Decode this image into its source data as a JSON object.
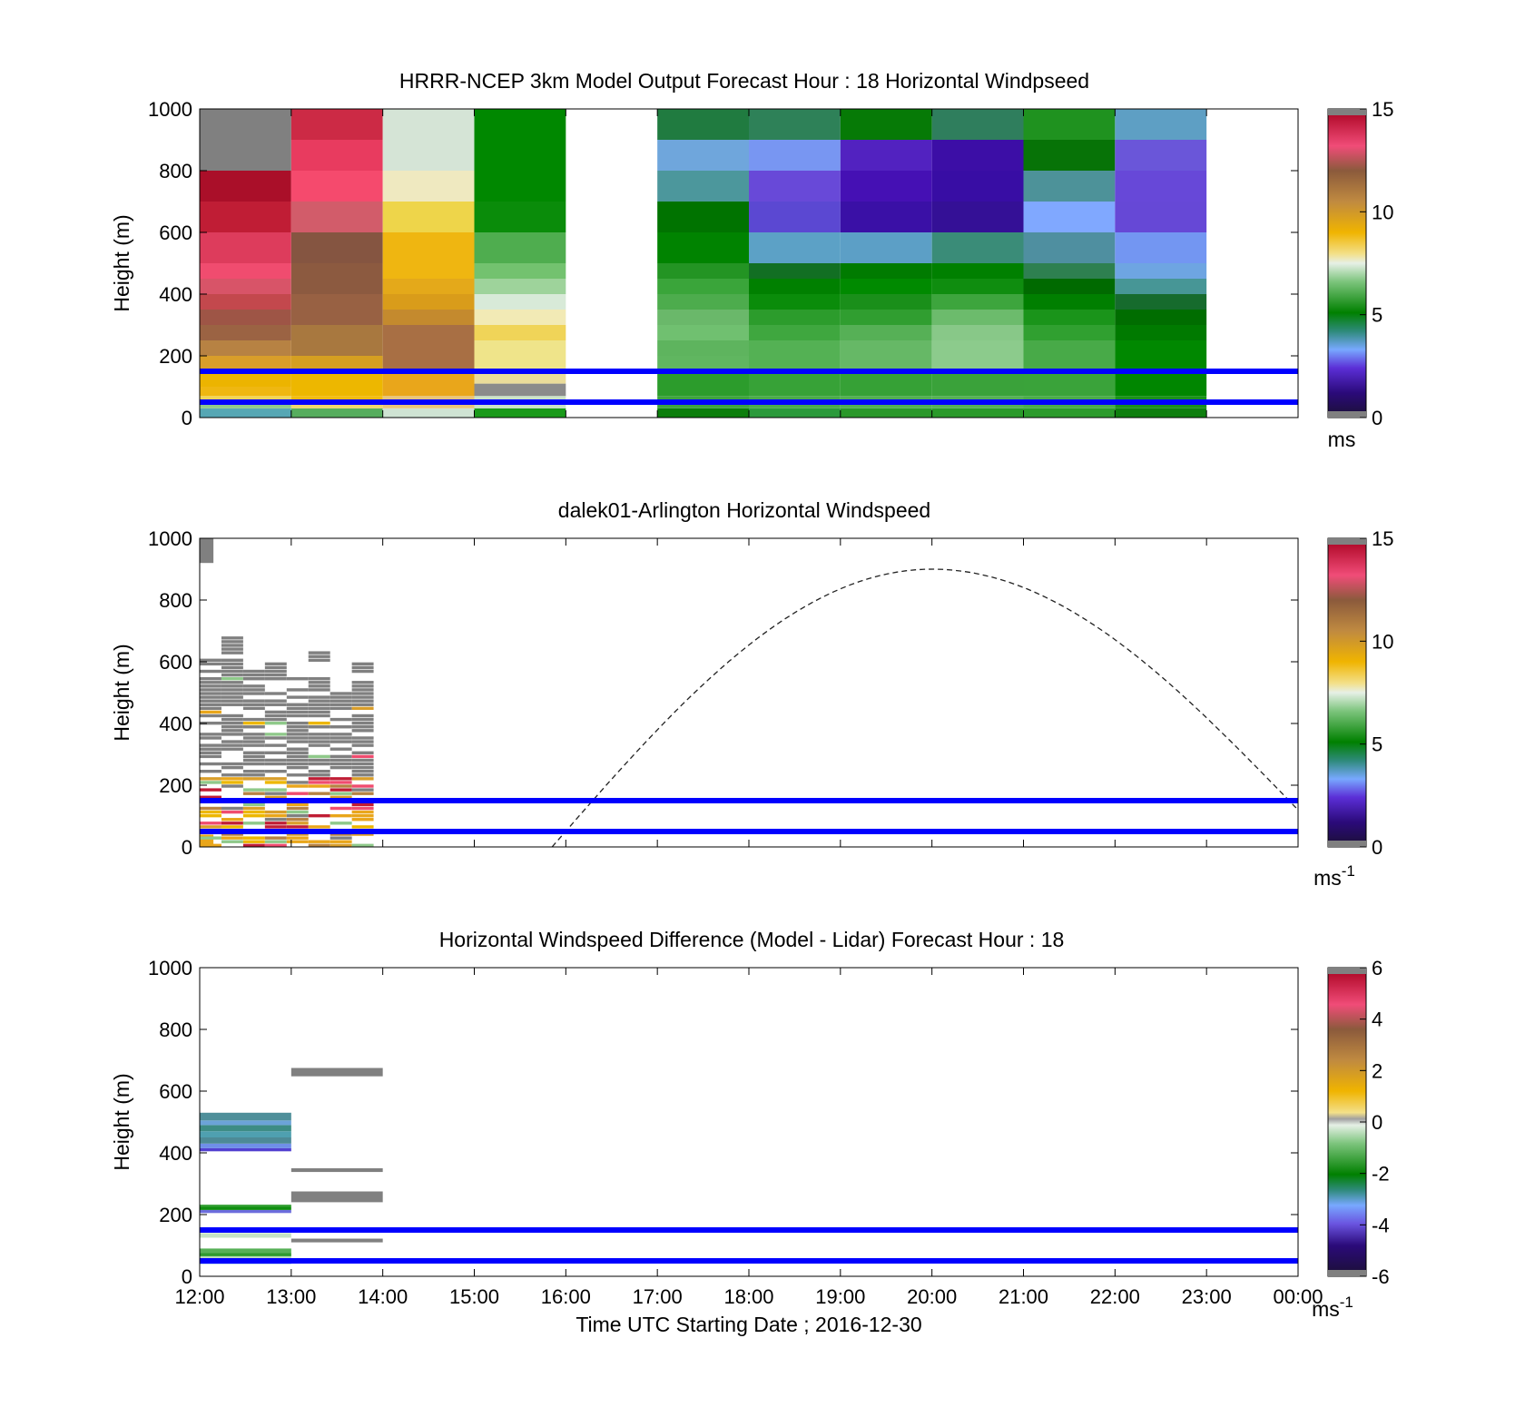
{
  "figure": {
    "xlabel": "Time UTC  Starting Date ; 2016-12-30",
    "x_ticks": [
      "12:00",
      "13:00",
      "14:00",
      "15:00",
      "16:00",
      "17:00",
      "18:00",
      "19:00",
      "20:00",
      "21:00",
      "22:00",
      "23:00",
      "00:00"
    ]
  },
  "chart_data": [
    {
      "type": "heatmap",
      "title": "HRRR-NCEP 3km Model Output   Forecast Hour : 18 Horizontal Windpseed",
      "ylabel": "Height (m)",
      "ylim": [
        0,
        1000
      ],
      "y_ticks": [
        "0",
        "200",
        "400",
        "600",
        "800",
        "1000"
      ],
      "colorbar": {
        "min": 0,
        "max": 15,
        "ticks": [
          "0",
          "5",
          "10",
          "15"
        ],
        "unit": "ms",
        "unit_sup": ""
      },
      "reference_lines_m": [
        50,
        150
      ],
      "reference_line_color": "#0000ff",
      "cells": [
        {
          "t0": 0,
          "t1": 1,
          "col": [
            [
              0,
              30,
              "#56a7b4"
            ],
            [
              30,
              50,
              "#8fc98a"
            ],
            [
              50,
              70,
              "#f0d455"
            ],
            [
              70,
              100,
              "#efb711"
            ],
            [
              100,
              150,
              "#ecb400"
            ],
            [
              150,
              200,
              "#d99e2a"
            ],
            [
              200,
              250,
              "#b78243"
            ],
            [
              250,
              300,
              "#9b6343"
            ],
            [
              300,
              350,
              "#9e5546"
            ],
            [
              350,
              400,
              "#c3484d"
            ],
            [
              400,
              450,
              "#d85468"
            ],
            [
              450,
              500,
              "#f04c6f"
            ],
            [
              500,
              600,
              "#dd3c5c"
            ],
            [
              600,
              700,
              "#c01d35"
            ],
            [
              700,
              800,
              "#aa0f29"
            ],
            [
              800,
              1000,
              "#808080"
            ]
          ]
        },
        {
          "t0": 1,
          "t1": 2,
          "col": [
            [
              0,
              30,
              "#56ad5e"
            ],
            [
              30,
              50,
              "#eed76e"
            ],
            [
              50,
              70,
              "#f1bb12"
            ],
            [
              70,
              150,
              "#edb700"
            ],
            [
              150,
              200,
              "#d59f21"
            ],
            [
              200,
              300,
              "#a8783f"
            ],
            [
              300,
              400,
              "#986143"
            ],
            [
              400,
              500,
              "#8c5a40"
            ],
            [
              500,
              600,
              "#855541"
            ],
            [
              600,
              700,
              "#d25c6a"
            ],
            [
              700,
              800,
              "#f54a6d"
            ],
            [
              800,
              900,
              "#e83b5f"
            ],
            [
              900,
              1000,
              "#cc2a45"
            ]
          ]
        },
        {
          "t0": 2,
          "t1": 3,
          "col": [
            [
              0,
              30,
              "#cfe3d3"
            ],
            [
              30,
              70,
              "#e8c47a"
            ],
            [
              70,
              150,
              "#e9a61b"
            ],
            [
              150,
              300,
              "#a86f44"
            ],
            [
              300,
              350,
              "#c48a2e"
            ],
            [
              350,
              400,
              "#d99c1a"
            ],
            [
              400,
              450,
              "#e4a91a"
            ],
            [
              450,
              600,
              "#efb611"
            ],
            [
              600,
              700,
              "#eed54a"
            ],
            [
              700,
              800,
              "#efe9c0"
            ],
            [
              800,
              1000,
              "#d5e4d6"
            ]
          ]
        },
        {
          "t0": 3,
          "t1": 4,
          "col": [
            [
              0,
              30,
              "#1a9a1a"
            ],
            [
              30,
              70,
              "#cbe2c8"
            ],
            [
              70,
              110,
              "#8b8b8b"
            ],
            [
              110,
              150,
              "#eadc9a"
            ],
            [
              150,
              250,
              "#efe48a"
            ],
            [
              250,
              300,
              "#f0d458"
            ],
            [
              300,
              350,
              "#f2eab5"
            ],
            [
              350,
              400,
              "#d8ead8"
            ],
            [
              400,
              450,
              "#9ed39b"
            ],
            [
              450,
              500,
              "#73c26f"
            ],
            [
              500,
              600,
              "#4fad4f"
            ],
            [
              600,
              700,
              "#0a8c0a"
            ],
            [
              700,
              1000,
              "#008800"
            ]
          ]
        },
        {
          "t0": 5,
          "t1": 6,
          "col": [
            [
              0,
              30,
              "#0c7e0c"
            ],
            [
              30,
              70,
              "#3ea33e"
            ],
            [
              70,
              150,
              "#2c9c2c"
            ],
            [
              150,
              200,
              "#60b660"
            ],
            [
              200,
              250,
              "#5eb45e"
            ],
            [
              250,
              300,
              "#70c070"
            ],
            [
              300,
              350,
              "#6ab86a"
            ],
            [
              350,
              400,
              "#4dac4d"
            ],
            [
              400,
              450,
              "#3aa53a"
            ],
            [
              450,
              500,
              "#239423"
            ],
            [
              500,
              600,
              "#008300"
            ],
            [
              600,
              700,
              "#007300"
            ],
            [
              700,
              800,
              "#4c979c"
            ],
            [
              800,
              900,
              "#6fa6dc"
            ],
            [
              900,
              1000,
              "#207b40"
            ]
          ]
        },
        {
          "t0": 6,
          "t1": 7,
          "col": [
            [
              0,
              30,
              "#2b9a3b"
            ],
            [
              30,
              70,
              "#4aaa4a"
            ],
            [
              70,
              150,
              "#37a237"
            ],
            [
              150,
              250,
              "#54b154"
            ],
            [
              250,
              300,
              "#3fa73f"
            ],
            [
              300,
              350,
              "#2c9c2c"
            ],
            [
              350,
              400,
              "#0a8c0a"
            ],
            [
              400,
              450,
              "#008000"
            ],
            [
              450,
              500,
              "#126f23"
            ],
            [
              500,
              600,
              "#5ca1c6"
            ],
            [
              600,
              700,
              "#5b48d2"
            ],
            [
              700,
              800,
              "#6849d8"
            ],
            [
              800,
              900,
              "#7896f2"
            ],
            [
              900,
              1000,
              "#2e8158"
            ]
          ]
        },
        {
          "t0": 7,
          "t1": 8,
          "col": [
            [
              0,
              30,
              "#2a982a"
            ],
            [
              30,
              70,
              "#52ae52"
            ],
            [
              70,
              150,
              "#36a136"
            ],
            [
              150,
              250,
              "#66b866"
            ],
            [
              250,
              300,
              "#56b056"
            ],
            [
              300,
              350,
              "#309e30"
            ],
            [
              350,
              400,
              "#1a8f1a"
            ],
            [
              400,
              450,
              "#008a00"
            ],
            [
              450,
              500,
              "#007b00"
            ],
            [
              500,
              600,
              "#5c9fc6"
            ],
            [
              600,
              700,
              "#3a10a6"
            ],
            [
              700,
              800,
              "#4510b4"
            ],
            [
              800,
              900,
              "#5222c0"
            ],
            [
              900,
              1000,
              "#067a06"
            ]
          ]
        },
        {
          "t0": 8,
          "t1": 9,
          "col": [
            [
              0,
              30,
              "#2a9a2a"
            ],
            [
              30,
              70,
              "#55af55"
            ],
            [
              70,
              150,
              "#3aa23a"
            ],
            [
              150,
              250,
              "#8ccb8c"
            ],
            [
              250,
              300,
              "#88c888"
            ],
            [
              300,
              350,
              "#6cbb6c"
            ],
            [
              350,
              400,
              "#3da53d"
            ],
            [
              400,
              450,
              "#0f8d0f"
            ],
            [
              450,
              500,
              "#008000"
            ],
            [
              500,
              600,
              "#3a8c78"
            ],
            [
              600,
              700,
              "#341096"
            ],
            [
              700,
              800,
              "#380da4"
            ],
            [
              800,
              900,
              "#3c0ea6"
            ],
            [
              900,
              1000,
              "#2f7e5d"
            ]
          ]
        },
        {
          "t0": 9,
          "t1": 10,
          "col": [
            [
              0,
              30,
              "#2c9b2c"
            ],
            [
              30,
              70,
              "#4aab4a"
            ],
            [
              70,
              150,
              "#3aa33a"
            ],
            [
              150,
              250,
              "#48aa48"
            ],
            [
              250,
              300,
              "#30a030"
            ],
            [
              300,
              350,
              "#1a941a"
            ],
            [
              350,
              400,
              "#007f00"
            ],
            [
              400,
              450,
              "#006a00"
            ],
            [
              450,
              500,
              "#2e8050"
            ],
            [
              500,
              600,
              "#4f8fa0"
            ],
            [
              600,
              700,
              "#80a8ff"
            ],
            [
              700,
              800,
              "#4d9299"
            ],
            [
              800,
              900,
              "#077307"
            ],
            [
              900,
              1000,
              "#1f921f"
            ]
          ]
        },
        {
          "t0": 10,
          "t1": 11,
          "col": [
            [
              0,
              30,
              "#0f7f0f"
            ],
            [
              30,
              70,
              "#1a901a"
            ],
            [
              70,
              150,
              "#008600"
            ],
            [
              150,
              250,
              "#008800"
            ],
            [
              250,
              300,
              "#007a00"
            ],
            [
              300,
              350,
              "#006d00"
            ],
            [
              350,
              400,
              "#166b2d"
            ],
            [
              400,
              450,
              "#479696"
            ],
            [
              450,
              500,
              "#6ea5e2"
            ],
            [
              500,
              600,
              "#7396f2"
            ],
            [
              600,
              700,
              "#6648d6"
            ],
            [
              700,
              800,
              "#6748d8"
            ],
            [
              800,
              900,
              "#6a56d9"
            ],
            [
              900,
              1000,
              "#5e9fc4"
            ]
          ]
        }
      ]
    },
    {
      "type": "heatmap",
      "title": "dalek01-Arlington  Horizontal Windspeed",
      "ylabel": "Height (m)",
      "ylim": [
        0,
        1000
      ],
      "y_ticks": [
        "0",
        "200",
        "400",
        "600",
        "800",
        "1000"
      ],
      "colorbar": {
        "min": 0,
        "max": 15,
        "ticks": [
          "0",
          "5",
          "10",
          "15"
        ],
        "unit": "ms",
        "unit_sup": "-1"
      },
      "reference_lines_m": [
        50,
        150
      ],
      "reference_line_color": "#0000ff",
      "sun_curve": {
        "start_hour": 3.85,
        "peak_hour": 8.0,
        "peak_height_m": 900,
        "end_hour": 12.0,
        "end_height_m": 120,
        "style": "dashed"
      },
      "observed_times_hours": [
        0,
        1.9
      ],
      "cells": [
        {
          "t0": 0,
          "t1": 0.15,
          "col": [
            [
              0,
              40,
              "#e9a61b"
            ],
            [
              920,
              1000,
              "#808080"
            ]
          ]
        }
      ]
    },
    {
      "type": "heatmap",
      "title": "Horizontal Windspeed Difference (Model - Lidar) Forecast Hour : 18",
      "ylabel": "Height (m)",
      "ylim": [
        0,
        1000
      ],
      "y_ticks": [
        "0",
        "200",
        "400",
        "600",
        "800",
        "1000"
      ],
      "colorbar": {
        "min": -6,
        "max": 6,
        "ticks": [
          "-6",
          "-4",
          "-2",
          "0",
          "2",
          "4",
          "6"
        ],
        "unit": "ms",
        "unit_sup": "-1"
      },
      "reference_lines_m": [
        50,
        150
      ],
      "reference_line_color": "#0000ff",
      "cells": [
        {
          "t0": 0,
          "t1": 1,
          "col": [
            [
              40,
              55,
              "#6fa6dc"
            ],
            [
              55,
              65,
              "#b9dcbc"
            ],
            [
              65,
              75,
              "#2f9a2f"
            ],
            [
              75,
              90,
              "#57b057"
            ],
            [
              110,
              125,
              "#ffffff"
            ],
            [
              125,
              140,
              "#c6e2c6"
            ],
            [
              205,
              215,
              "#6c6cdd"
            ],
            [
              215,
              225,
              "#0f8f0f"
            ],
            [
              225,
              232,
              "#34a034"
            ],
            [
              405,
              415,
              "#5240d0"
            ],
            [
              415,
              430,
              "#6f8fe8"
            ],
            [
              430,
              450,
              "#4d8a96"
            ],
            [
              450,
              470,
              "#4fa0b0"
            ],
            [
              470,
              490,
              "#3d8c85"
            ],
            [
              490,
              505,
              "#6ca3d8"
            ],
            [
              505,
              530,
              "#4f8f9a"
            ]
          ]
        },
        {
          "t0": 1,
          "t1": 2,
          "col": [
            [
              110,
              122,
              "#808080"
            ],
            [
              240,
              275,
              "#808080"
            ],
            [
              338,
              350,
              "#808080"
            ],
            [
              648,
              675,
              "#808080"
            ]
          ]
        }
      ]
    }
  ]
}
